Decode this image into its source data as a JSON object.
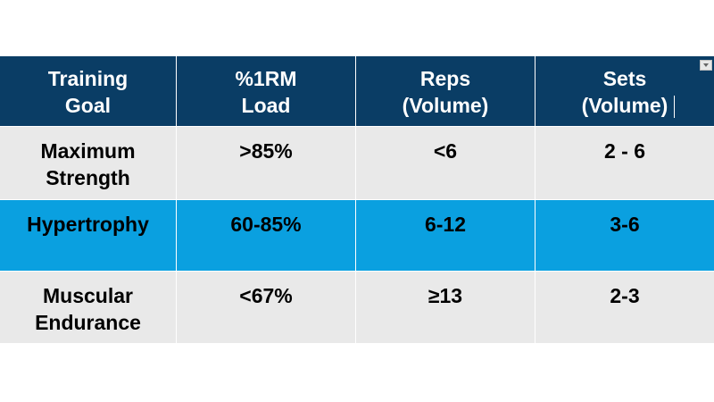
{
  "table": {
    "headers": [
      "Training\nGoal",
      "%1RM\nLoad",
      "Reps\n(Volume)",
      "Sets\n(Volume)"
    ],
    "rows": [
      [
        "Maximum\nStrength",
        ">85%",
        "<6",
        "2 - 6"
      ],
      [
        "Hypertrophy",
        "60-85%",
        "6-12",
        "3-6"
      ],
      [
        "Muscular\nEndurance",
        "<67%",
        "≥13",
        "2-3"
      ]
    ]
  },
  "colors": {
    "header_bg": "#0a3d65",
    "header_text": "#ffffff",
    "row_grey": "#e9e9e9",
    "row_highlight": "#0aa0e0",
    "cell_text": "#000000"
  },
  "icons": {
    "table_menu": "chevron-down-icon"
  }
}
